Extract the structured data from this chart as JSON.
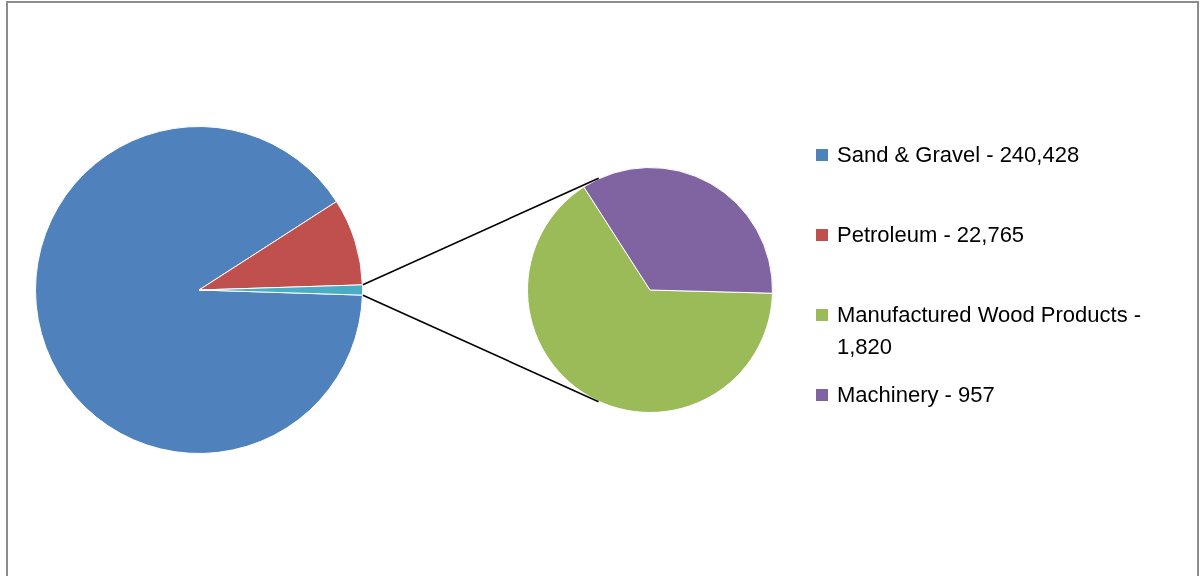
{
  "chart_data": [
    {
      "type": "pie",
      "categories": [
        "Sand & Gravel - 240,428",
        "Petroleum - 22,765",
        null
      ],
      "values": [
        90.4,
        8.6,
        1.0
      ],
      "colors": [
        "#4f81bd",
        "#c0504d",
        "#4bacc6"
      ],
      "legend": "right"
    },
    {
      "type": "pie",
      "categories": [
        "Manufactured Wood Products - 1,820",
        "Machinery - 957"
      ],
      "values": [
        65.5,
        34.5
      ],
      "colors": [
        "#9bbb59",
        "#8064a2"
      ],
      "legend": "right"
    }
  ]
}
